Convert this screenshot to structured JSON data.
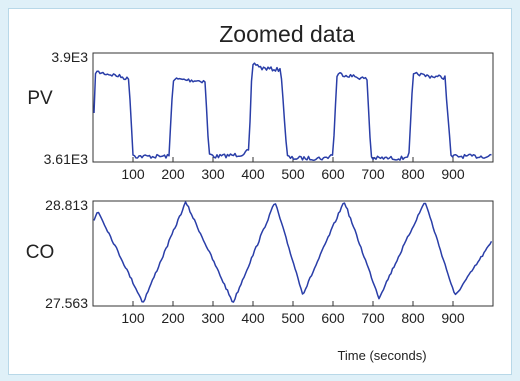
{
  "title": "Zoomed data",
  "xlabel": "Time (seconds)",
  "colors": {
    "line": "#2a3ea8",
    "axis": "#333333",
    "background": "#dff0f8"
  },
  "chart_data": [
    {
      "type": "line",
      "ylabel": "PV",
      "ylim": [
        3610,
        3900
      ],
      "ytick_labels": [
        "3.9E3",
        "3.61E3"
      ],
      "xlim": [
        0,
        1000
      ],
      "xticks": [
        100,
        200,
        300,
        400,
        500,
        600,
        700,
        800,
        900
      ],
      "xtick_labels": [
        "100",
        "200",
        "300",
        "400",
        "500",
        "600",
        "700",
        "800",
        "900"
      ],
      "series": [
        {
          "x": [
            0,
            5,
            60,
            90,
            100,
            108,
            190,
            200,
            210,
            280,
            290,
            305,
            315,
            370,
            390,
            398,
            410,
            420,
            470,
            485,
            495,
            505,
            580,
            600,
            610,
            615,
            665,
            685,
            695,
            700,
            775,
            790,
            800,
            815,
            825,
            880,
            895,
            905,
            985,
            1000
          ],
          "y": [
            3620,
            3850,
            3840,
            3830,
            3630,
            3625,
            3625,
            3830,
            3830,
            3825,
            3630,
            3625,
            3625,
            3630,
            3640,
            3870,
            3870,
            3860,
            3855,
            3625,
            3620,
            3620,
            3620,
            3630,
            3840,
            3845,
            3835,
            3830,
            3625,
            3620,
            3620,
            3630,
            3840,
            3845,
            3840,
            3835,
            3625,
            3625,
            3625,
            3630
          ]
        }
      ]
    },
    {
      "type": "line",
      "ylabel": "CO",
      "ylim": [
        27.563,
        28.813
      ],
      "ytick_labels": [
        "28.813",
        "27.563"
      ],
      "xlim": [
        0,
        1000
      ],
      "xticks": [
        100,
        200,
        300,
        400,
        500,
        600,
        700,
        800,
        900
      ],
      "xtick_labels": [
        "100",
        "200",
        "300",
        "400",
        "500",
        "600",
        "700",
        "800",
        "900"
      ],
      "series": [
        {
          "x": [
            0,
            12,
            125,
            232,
            350,
            455,
            525,
            628,
            715,
            830,
            905,
            1000
          ],
          "y": [
            28.55,
            28.7,
            27.6,
            28.8,
            27.6,
            28.8,
            27.7,
            28.81,
            27.66,
            28.81,
            27.68,
            28.35
          ]
        }
      ]
    }
  ]
}
